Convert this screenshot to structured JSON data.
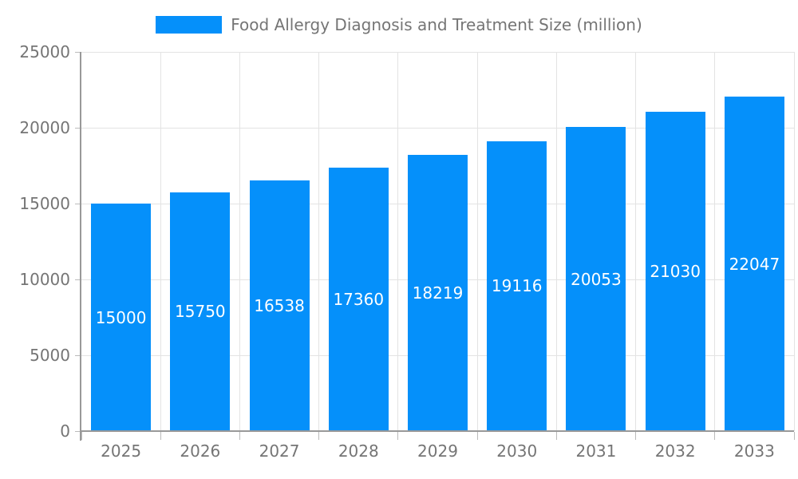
{
  "chart_data": {
    "type": "bar",
    "title": "Food Allergy Diagnosis and Treatment Size (million)",
    "categories": [
      "2025",
      "2026",
      "2027",
      "2028",
      "2029",
      "2030",
      "2031",
      "2032",
      "2033"
    ],
    "series": [
      {
        "name": "Food Allergy Diagnosis and Treatment Size (million)",
        "values": [
          15000,
          15750,
          16538,
          17360,
          18219,
          19116,
          20053,
          21030,
          22047
        ]
      }
    ],
    "bar_value_labels": [
      15000,
      15750,
      16538,
      17360,
      18219,
      19116,
      20053,
      21030,
      22047
    ],
    "xlabel": "",
    "ylabel": "",
    "ylim": [
      0,
      25000
    ],
    "yticks": [
      0,
      5000,
      10000,
      15000,
      20000,
      25000
    ],
    "grid": true,
    "legend_position": "top-center"
  },
  "colors": {
    "bar": "#0590FA",
    "axis": "#999999",
    "grid": "#E3E3E3",
    "tick": "#BBBBBB",
    "axis_label": "#757575",
    "value_label": "#FFFFFF",
    "background": "#FFFFFF"
  }
}
